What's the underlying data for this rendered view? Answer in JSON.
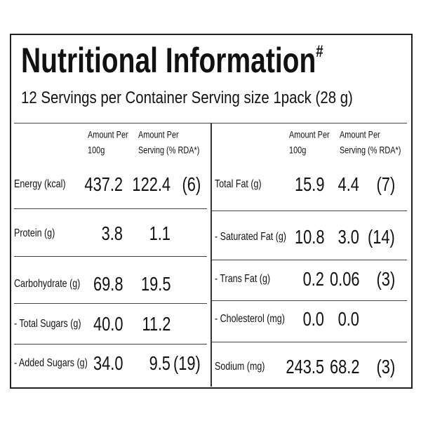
{
  "title": "Nutritional Information",
  "title_mark": "#",
  "subtitle": "12 Servings per Container Serving size 1pack (28 g)",
  "left": {
    "headers": [
      [
        "Amount Per",
        "100g"
      ],
      [
        "Amount Per",
        "Serving (% RDA*)"
      ]
    ],
    "rows": [
      {
        "name": "Energy (kcal)",
        "per_100g": "437.2",
        "per_serving": "122.4",
        "rda": "(6)"
      },
      {
        "name": "Protein (g)",
        "per_100g": "3.8",
        "per_serving": "1.1"
      },
      {
        "name": "Carbohydrate (g)",
        "per_100g": "69.8",
        "per_serving": "19.5"
      },
      {
        "name": "- Total Sugars (g)",
        "per_100g": "40.0",
        "per_serving": "11.2"
      },
      {
        "name": "- Added Sugars (g)",
        "per_100g": "34.0",
        "per_serving": "9.5",
        "rda": "(19)"
      }
    ]
  },
  "right": {
    "headers": [
      [
        "Amount Per",
        "100g"
      ],
      [
        "Amount Per",
        "Serving (% RDA*)"
      ]
    ],
    "rows": [
      {
        "name": "Total Fat (g)",
        "per_100g": "15.9",
        "per_serving": "4.4",
        "rda": "(7)"
      },
      {
        "name": "- Saturated Fat (g)",
        "per_100g": "10.8",
        "per_serving": "3.0",
        "rda": "(14)"
      },
      {
        "name": "- Trans Fat (g)",
        "per_100g": "0.2",
        "per_serving": "0.06",
        "rda": "(3)"
      },
      {
        "name": "- Cholesterol (mg)",
        "per_100g": "0.0",
        "per_serving": "0.0"
      },
      {
        "name": "Sodium (mg)",
        "per_100g": "243.5",
        "per_serving": "68.2",
        "rda": "(3)"
      }
    ]
  }
}
